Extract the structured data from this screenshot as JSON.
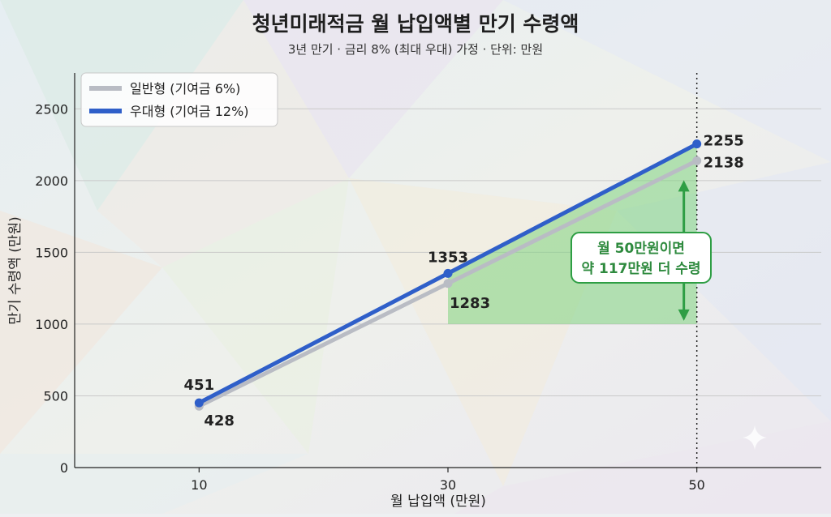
{
  "chart_data": {
    "type": "line",
    "title": "청년미래적금 월 납입액별 만기 수령액",
    "subtitle": "3년 만기 · 금리 8% (최대 우대) 가정 · 단위: 만원",
    "xlabel": "월 납입액 (만원)",
    "ylabel": "만기 수령액 (만원)",
    "x": [
      10,
      30,
      50
    ],
    "xlim": [
      0,
      60
    ],
    "ylim": [
      0,
      2750
    ],
    "yticks": [
      0,
      500,
      1000,
      1500,
      2000,
      2500
    ],
    "grid": true,
    "legend_position": "top-left",
    "series": [
      {
        "name": "일반형 (기여금 6%)",
        "values": [
          428,
          1283,
          2138
        ],
        "labels": [
          "428",
          "1283",
          "2138"
        ],
        "color": "#b9bcc4"
      },
      {
        "name": "우대형 (기여금 12%)",
        "values": [
          451,
          1353,
          2255
        ],
        "labels": [
          "451",
          "1353",
          "2255"
        ],
        "color": "#2f5fc9"
      }
    ],
    "annotation": {
      "text_line1": "월 50만원이면",
      "text_line2": "약 117만원 더 수령",
      "color": "#2e9e44"
    }
  }
}
